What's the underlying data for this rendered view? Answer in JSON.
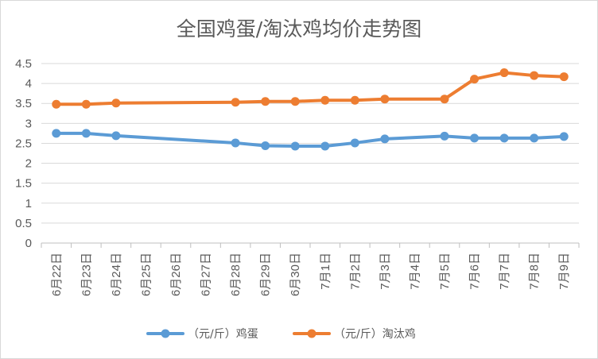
{
  "chart_data": {
    "type": "line",
    "title": "全国鸡蛋/淘汰鸡均价走势图",
    "xlabel": "",
    "ylabel": "",
    "ylim": [
      0,
      4.5
    ],
    "yticks": [
      0,
      0.5,
      1,
      1.5,
      2,
      2.5,
      3,
      3.5,
      4,
      4.5
    ],
    "grid": "horizontal",
    "legend": "bottom",
    "categories": [
      "6月22日",
      "6月23日",
      "6月24日",
      "6月25日",
      "6月26日",
      "6月27日",
      "6月28日",
      "6月29日",
      "6月30日",
      "7月1日",
      "7月2日",
      "7月3日",
      "7月4日",
      "7月5日",
      "7月6日",
      "7月7日",
      "7月8日",
      "7月9日"
    ],
    "series": [
      {
        "name": "（元/斤）鸡蛋",
        "color": "#5b9bd5",
        "values": [
          2.75,
          2.75,
          2.69,
          null,
          null,
          null,
          2.51,
          2.44,
          2.43,
          2.43,
          2.51,
          2.61,
          null,
          2.68,
          2.63,
          2.63,
          2.63,
          2.67
        ]
      },
      {
        "name": "（元/斤）淘汰鸡",
        "color": "#ed7d31",
        "values": [
          3.48,
          3.48,
          3.51,
          null,
          null,
          null,
          3.53,
          3.55,
          3.55,
          3.58,
          3.58,
          3.61,
          null,
          3.61,
          4.11,
          4.27,
          4.2,
          4.17
        ]
      }
    ]
  }
}
